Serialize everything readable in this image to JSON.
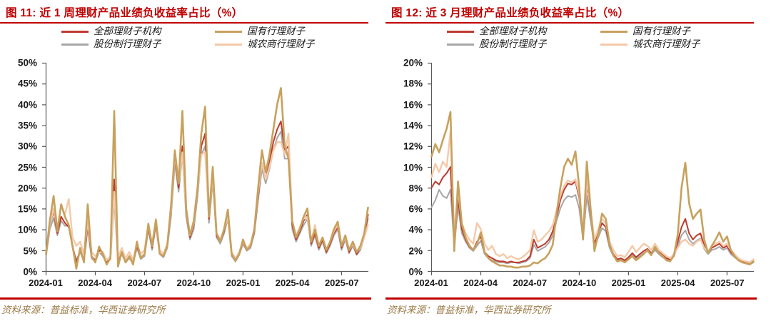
{
  "panels": [
    {
      "title": "图 11:  近 1 周理财产品业绩负收益率占比（%）",
      "legend": [
        {
          "label": "全部理财子机构",
          "color": "#be3a2e"
        },
        {
          "label": "国有行理财子",
          "color": "#c7a15c"
        },
        {
          "label": "股份制行理财子",
          "color": "#a7a7a7"
        },
        {
          "label": "城农商行理财子",
          "color": "#f5c9a8"
        }
      ],
      "source": "资料来源：普益标准，华西证券研究所"
    },
    {
      "title": "图 12:  近 3 月理财产品业绩负收益率占比（%）",
      "legend": [
        {
          "label": "全部理财子机构",
          "color": "#be3a2e"
        },
        {
          "label": "国有行理财子",
          "color": "#c7a15c"
        },
        {
          "label": "股份制行理财子",
          "color": "#a7a7a7"
        },
        {
          "label": "城农商行理财子",
          "color": "#f5c9a8"
        }
      ],
      "source": "资料来源：普益标准，华西证券研究所"
    }
  ],
  "colors": {
    "title_red": "#c00000",
    "rule_red": "#c00000",
    "axis": "#595959",
    "tick_text": "#1a1a1a",
    "source_tan": "#9c7b48"
  },
  "chart_data": [
    {
      "type": "line",
      "title": "近 1 周理财产品业绩负收益率占比（%）",
      "x_tick_labels": [
        "2024-01",
        "2024-04",
        "2024-07",
        "2024-10",
        "2025-01",
        "2025-04",
        "2025-07"
      ],
      "x_tick_indices": [
        0,
        13,
        26,
        39,
        52,
        65,
        78
      ],
      "n_points": 86,
      "x_unit": "week",
      "ylim": [
        0,
        50
      ],
      "y_tick_labels": [
        "50%",
        "45%",
        "40%",
        "35%",
        "30%",
        "25%",
        "20%",
        "15%",
        "10%",
        "5%",
        "0%"
      ],
      "grid": false,
      "legend_position": "top",
      "series": [
        {
          "name": "全部理财子机构",
          "color": "#be3a2e",
          "width": 2.0,
          "z": 1,
          "values": [
            4,
            11,
            14.4,
            9,
            13,
            11.5,
            10.5,
            6,
            2,
            5,
            2.5,
            11,
            3.5,
            2.5,
            5,
            4,
            2,
            3,
            22,
            2,
            4.5,
            2.2,
            3.5,
            2,
            6,
            3.2,
            4,
            10.5,
            5.5,
            11.5,
            4.2,
            3.5,
            6,
            14,
            27.5,
            20,
            30,
            14,
            8,
            11,
            19,
            30,
            33,
            12.5,
            23,
            8.5,
            7,
            9.5,
            13.5,
            4,
            2.5,
            4,
            7,
            5,
            6,
            9.5,
            18,
            26,
            22,
            26,
            31,
            34,
            36,
            29,
            30,
            11,
            7.5,
            9.5,
            12,
            13.5,
            6.5,
            9,
            5.5,
            7.5,
            4.5,
            6.5,
            9,
            10.5,
            5.5,
            8,
            4.5,
            6.5,
            4,
            5.5,
            8.5,
            13.5
          ]
        },
        {
          "name": "国有行理财子",
          "color": "#c7a15c",
          "width": 2.6,
          "z": 3,
          "values": [
            4,
            12,
            18,
            9.5,
            16,
            13,
            11,
            6,
            0.5,
            5.5,
            2,
            16,
            3.5,
            2,
            5.8,
            4,
            1.5,
            3,
            38.5,
            1,
            4.5,
            2,
            3.5,
            1.5,
            7,
            3,
            4,
            11.3,
            5.9,
            12.2,
            4.1,
            3.5,
            6,
            15.8,
            29,
            21,
            38.5,
            15,
            8.5,
            12,
            20,
            33,
            39.5,
            13,
            25,
            9,
            7,
            10,
            14.7,
            4,
            2.5,
            4,
            7.5,
            5,
            6,
            10,
            20,
            29,
            23.7,
            28,
            34,
            40,
            44,
            30,
            27,
            12,
            8,
            10,
            13,
            15,
            7,
            9.9,
            6,
            8,
            5,
            7,
            10,
            11.8,
            6,
            8.5,
            5,
            7,
            4.5,
            6,
            9,
            15.2
          ]
        },
        {
          "name": "股份制行理财子",
          "color": "#a7a7a7",
          "width": 2.0,
          "z": 0,
          "values": [
            3.5,
            10,
            12.7,
            8.5,
            12,
            10.8,
            10.9,
            5.5,
            2.5,
            4.5,
            2.2,
            10.5,
            3,
            2.2,
            4.5,
            3.5,
            1.8,
            2.8,
            17,
            1.8,
            4,
            2,
            3,
            1.8,
            5.5,
            2.8,
            3.5,
            10,
            5,
            11,
            4,
            3.2,
            5.5,
            13,
            26,
            19,
            28,
            13,
            7.5,
            10,
            18,
            28,
            30,
            11.5,
            21.5,
            8,
            6.5,
            9,
            12.5,
            3.5,
            2.2,
            3.8,
            6.5,
            4.8,
            5.5,
            9,
            17,
            24.5,
            21,
            24.5,
            29,
            32,
            33.5,
            27,
            27,
            10,
            7,
            9,
            11,
            12.5,
            6,
            8.5,
            5,
            7,
            4.2,
            6,
            8.5,
            10,
            5,
            7.5,
            4.2,
            6,
            3.8,
            5,
            8,
            12.5
          ]
        },
        {
          "name": "城农商行理财子",
          "color": "#f5c9a8",
          "width": 2.4,
          "z": 2,
          "values": [
            4.5,
            11,
            15,
            10,
            15.8,
            13.5,
            17.3,
            8,
            6,
            7,
            4,
            11.8,
            4.5,
            3.5,
            4.4,
            4.5,
            2.5,
            3.5,
            19,
            3,
            5.5,
            3,
            4.5,
            2.5,
            6.5,
            4,
            5,
            11,
            6.5,
            12.5,
            5,
            4,
            6.5,
            14.5,
            28,
            21,
            28.5,
            14.5,
            8.5,
            11.5,
            19.5,
            28,
            28.5,
            13,
            23,
            9,
            7.5,
            10,
            13,
            4.5,
            3,
            4.5,
            7,
            5.5,
            6.5,
            10,
            19,
            26,
            22,
            25,
            29,
            31,
            31,
            28,
            33,
            12,
            8.5,
            10.5,
            12.5,
            13,
            7,
            11,
            6,
            8,
            5,
            7,
            9.5,
            11,
            6,
            8,
            5,
            6.5,
            4.5,
            5.5,
            8,
            11
          ]
        }
      ]
    },
    {
      "type": "line",
      "title": "近 3 月理财产品业绩负收益率占比（%）",
      "x_tick_labels": [
        "2024-01",
        "2024-04",
        "2024-07",
        "2024-10",
        "2025-01",
        "2025-04",
        "2025-07"
      ],
      "x_tick_indices": [
        0,
        13,
        26,
        39,
        52,
        65,
        78
      ],
      "n_points": 86,
      "x_unit": "week",
      "ylim": [
        0,
        20
      ],
      "y_tick_labels": [
        "20%",
        "18%",
        "16%",
        "14%",
        "12%",
        "10%",
        "8%",
        "6%",
        "4%",
        "2%",
        "0%"
      ],
      "grid": false,
      "legend_position": "top",
      "series": [
        {
          "name": "全部理财子机构",
          "color": "#be3a2e",
          "width": 2.0,
          "z": 1,
          "values": [
            8,
            8.6,
            8.3,
            9,
            9.4,
            10,
            2.5,
            7,
            4,
            3,
            2.3,
            2,
            2.8,
            3.3,
            1.8,
            1.4,
            1.2,
            1,
            0.9,
            0.9,
            0.8,
            0.9,
            0.8,
            0.8,
            0.9,
            1,
            1.4,
            3,
            2.2,
            2.4,
            2.6,
            3,
            3.8,
            5.2,
            6.8,
            7.8,
            8.4,
            8.3,
            8.6,
            7,
            3.2,
            8.4,
            5.5,
            2.7,
            3.6,
            4.6,
            4.2,
            2.4,
            1.6,
            1.1,
            1.2,
            1,
            1.3,
            1.7,
            1.3,
            1.6,
            1.9,
            2.1,
            1.7,
            2.2,
            1.8,
            1.5,
            1.2,
            1.1,
            1.6,
            2.8,
            4.2,
            5,
            3.6,
            3,
            3.4,
            3.6,
            2.4,
            1.8,
            2.2,
            2.4,
            2.6,
            2.2,
            2.4,
            1.8,
            1.4,
            1.1,
            0.9,
            0.8,
            0.7,
            0.9
          ]
        },
        {
          "name": "国有行理财子",
          "color": "#c7a15c",
          "width": 2.6,
          "z": 3,
          "values": [
            11,
            12.2,
            11.4,
            12.6,
            13.7,
            15.3,
            1.9,
            8.6,
            4.5,
            3.2,
            2.4,
            2,
            2.6,
            3.7,
            1.8,
            1.2,
            0.9,
            0.7,
            0.5,
            0.5,
            0.4,
            0.4,
            0.3,
            0.3,
            0.4,
            0.4,
            0.5,
            0.8,
            0.7,
            1,
            1.2,
            1.7,
            2.5,
            5.5,
            8,
            10,
            10.8,
            10.2,
            11.5,
            8,
            3,
            10.5,
            6,
            1.9,
            3.5,
            5.5,
            5,
            2.5,
            1.5,
            0.9,
            1,
            0.8,
            1.1,
            1.4,
            1,
            1.3,
            1.6,
            2,
            1.5,
            2.3,
            1.7,
            1.4,
            1,
            0.9,
            1.5,
            3.5,
            8,
            10.4,
            6.5,
            5,
            5.5,
            5.9,
            3,
            1.7,
            2.4,
            3,
            3.7,
            2.8,
            3.3,
            2,
            1.4,
            1,
            0.8,
            0.7,
            0.6,
            0.9
          ]
        },
        {
          "name": "股份制行理财子",
          "color": "#a7a7a7",
          "width": 2.0,
          "z": 0,
          "values": [
            6.1,
            6.8,
            7.8,
            7.2,
            7,
            7.8,
            2.3,
            6.2,
            3.6,
            2.8,
            2.2,
            1.9,
            2.4,
            2.9,
            1.6,
            1.2,
            1,
            0.9,
            0.8,
            0.8,
            0.7,
            0.8,
            0.8,
            0.7,
            0.8,
            0.9,
            1.2,
            2.5,
            1.9,
            2.1,
            2.3,
            2.7,
            3.4,
            4.8,
            6,
            6.8,
            7.2,
            7.1,
            7.3,
            6,
            3,
            7.2,
            4.8,
            2.4,
            3.2,
            4.1,
            3.8,
            2.2,
            1.4,
            1,
            1.1,
            0.9,
            1.2,
            1.5,
            1.2,
            1.4,
            1.7,
            1.9,
            1.5,
            2,
            1.6,
            1.3,
            1.1,
            1,
            1.4,
            2.4,
            3.4,
            3.9,
            3,
            2.6,
            2.9,
            3.1,
            2.1,
            1.6,
            2,
            2.1,
            2.3,
            2,
            2.2,
            1.6,
            1.3,
            1,
            0.8,
            0.7,
            0.6,
            0.8
          ]
        },
        {
          "name": "城农商行理财子",
          "color": "#f5c9a8",
          "width": 2.4,
          "z": 2,
          "values": [
            9,
            10.3,
            9.5,
            10.5,
            10,
            13.4,
            3.5,
            7.8,
            4.6,
            3.6,
            3,
            2.6,
            4.6,
            4,
            2.6,
            2,
            2.4,
            1.6,
            1.4,
            1.6,
            1.2,
            1.4,
            1.2,
            1.1,
            1.3,
            1.6,
            2,
            3.9,
            2.8,
            3,
            3.4,
            3.8,
            4.4,
            5.8,
            7.2,
            8.2,
            8.7,
            8.5,
            8.8,
            7.4,
            3.4,
            8.8,
            5.8,
            3,
            4,
            5,
            4.6,
            2.8,
            2,
            1.4,
            1.5,
            1.3,
            1.8,
            2.4,
            1.8,
            2.2,
            2.6,
            2.4,
            2,
            2.6,
            2,
            1.7,
            1.4,
            1.2,
            1.6,
            2.2,
            2.8,
            3,
            2.6,
            2.4,
            2.8,
            3,
            2.2,
            1.8,
            2.4,
            2.6,
            2.8,
            2.4,
            2.6,
            2,
            1.6,
            1.2,
            1,
            0.9,
            0.8,
            1.1
          ]
        }
      ]
    }
  ]
}
